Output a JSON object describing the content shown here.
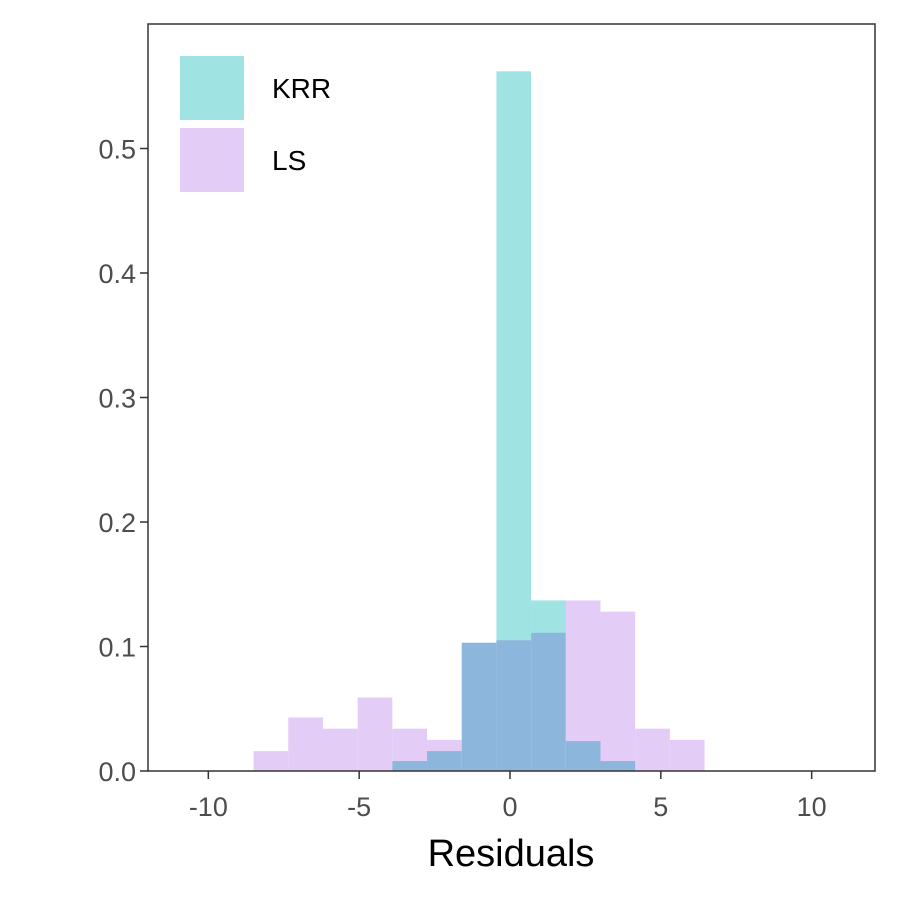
{
  "chart_data": {
    "type": "bar",
    "subtype": "overlapping histogram",
    "xlabel": "Residuals",
    "ylabel": "",
    "xlim": [
      -12.0,
      12.1
    ],
    "ylim": [
      0,
      0.6
    ],
    "xticks": [
      -10,
      -5,
      0,
      5,
      10
    ],
    "xtick_labels": [
      "-10",
      "-5",
      "0",
      "5",
      "10"
    ],
    "yticks": [
      0.0,
      0.1,
      0.2,
      0.3,
      0.4,
      0.5
    ],
    "ytick_labels": [
      "0.0",
      "0.1",
      "0.2",
      "0.3",
      "0.4",
      "0.5"
    ],
    "grid": false,
    "legend_position": "top-left",
    "bin_width": 1.15,
    "series": [
      {
        "name": "KRR",
        "color": "#9fe3e3",
        "bins": [
          {
            "x0": -3.9,
            "x1": -2.75,
            "value": 0.008
          },
          {
            "x0": -2.75,
            "x1": -1.6,
            "value": 0.016
          },
          {
            "x0": -1.6,
            "x1": -0.45,
            "value": 0.103
          },
          {
            "x0": -0.45,
            "x1": 0.7,
            "value": 0.562
          },
          {
            "x0": 0.7,
            "x1": 1.85,
            "value": 0.137
          },
          {
            "x0": 1.85,
            "x1": 3.0,
            "value": 0.024
          },
          {
            "x0": 3.0,
            "x1": 4.15,
            "value": 0.008
          }
        ]
      },
      {
        "name": "LS",
        "color": "#e3cdf7",
        "bins": [
          {
            "x0": -8.5,
            "x1": -7.35,
            "value": 0.016
          },
          {
            "x0": -7.35,
            "x1": -6.2,
            "value": 0.043
          },
          {
            "x0": -6.2,
            "x1": -5.05,
            "value": 0.034
          },
          {
            "x0": -5.05,
            "x1": -3.9,
            "value": 0.059
          },
          {
            "x0": -3.9,
            "x1": -2.75,
            "value": 0.034
          },
          {
            "x0": -2.75,
            "x1": -1.6,
            "value": 0.025
          },
          {
            "x0": -1.6,
            "x1": -0.45,
            "value": 0.103
          },
          {
            "x0": -0.45,
            "x1": 0.7,
            "value": 0.105
          },
          {
            "x0": 0.7,
            "x1": 1.85,
            "value": 0.111
          },
          {
            "x0": 1.85,
            "x1": 3.0,
            "value": 0.137
          },
          {
            "x0": 3.0,
            "x1": 4.15,
            "value": 0.128
          },
          {
            "x0": 4.15,
            "x1": 5.3,
            "value": 0.034
          },
          {
            "x0": 5.3,
            "x1": 6.45,
            "value": 0.025
          }
        ]
      }
    ]
  }
}
